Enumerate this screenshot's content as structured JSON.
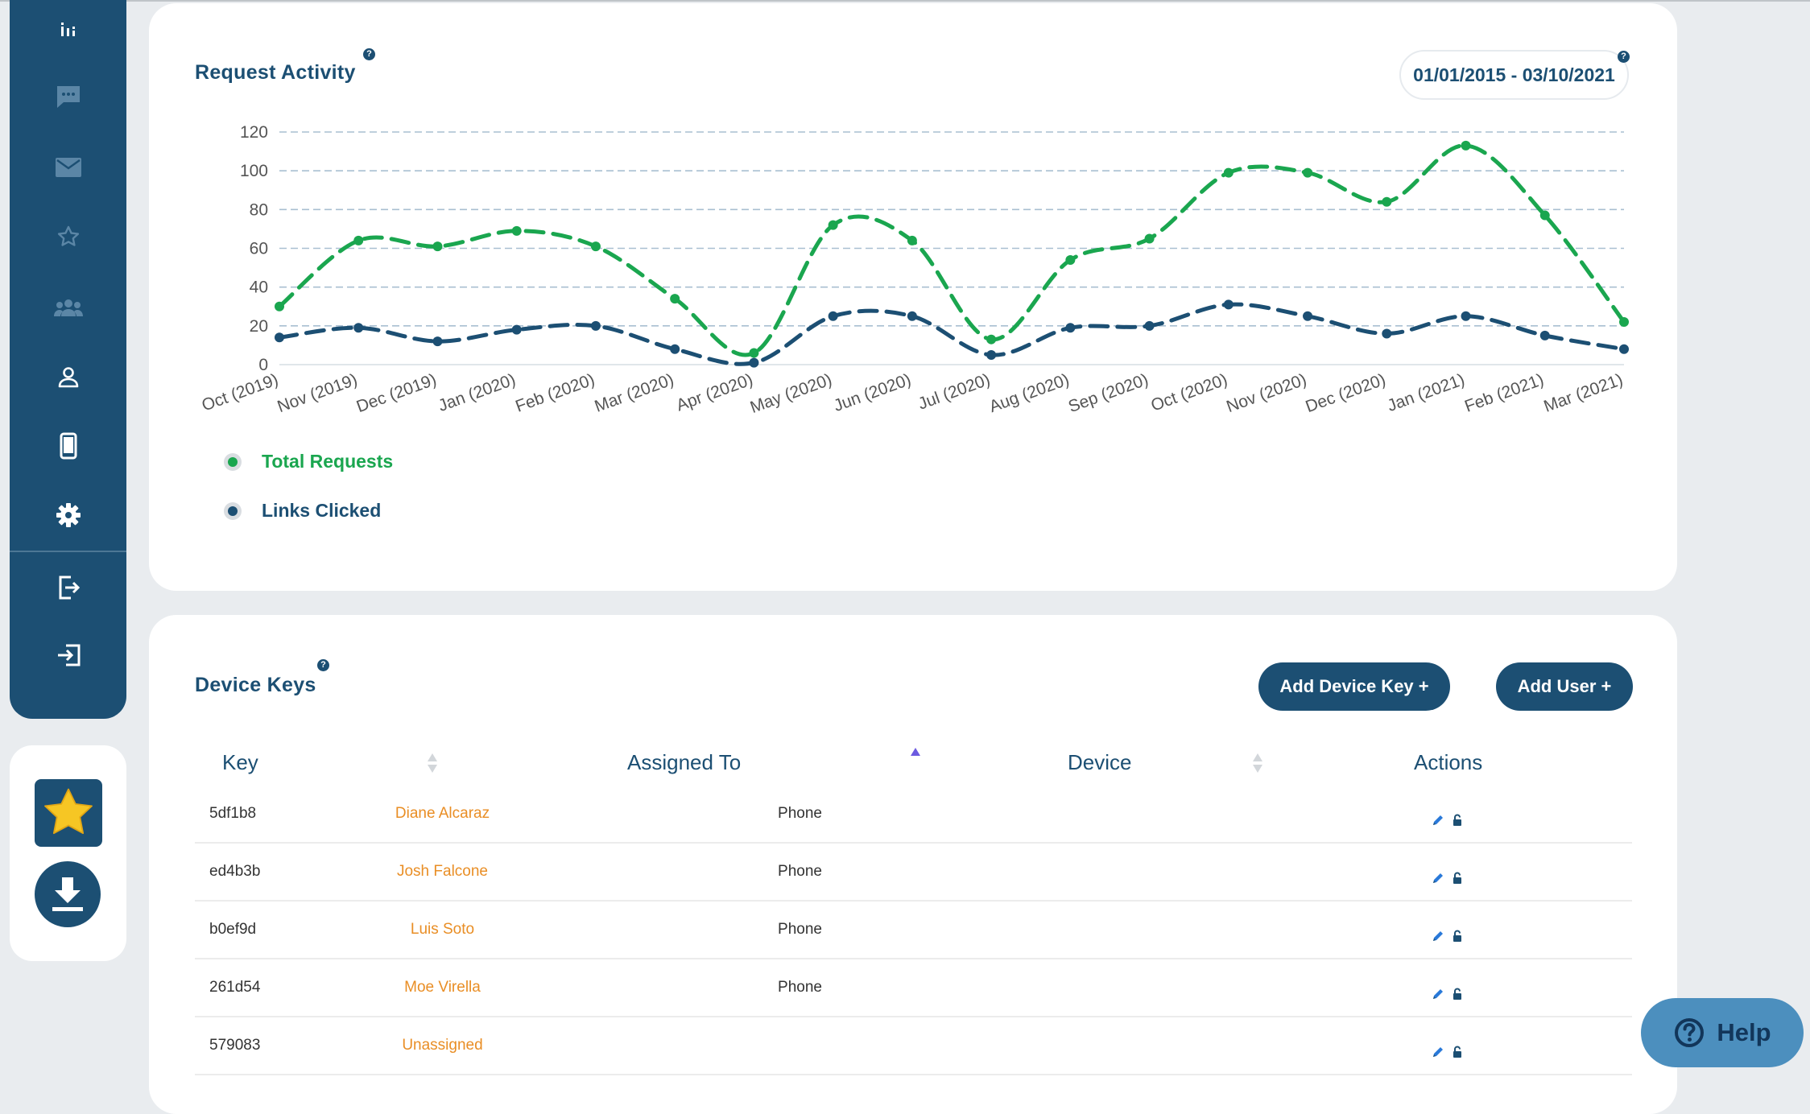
{
  "sidebar": {
    "nav": [
      {
        "icon": "bar-chart-icon"
      },
      {
        "icon": "chat-icon"
      },
      {
        "icon": "mail-icon"
      },
      {
        "icon": "star-icon"
      },
      {
        "icon": "group-icon"
      },
      {
        "icon": "user-icon"
      },
      {
        "icon": "phone-icon"
      },
      {
        "icon": "gear-icon"
      },
      {
        "icon": "export-icon"
      },
      {
        "icon": "logout-icon"
      }
    ],
    "favorites": [
      {
        "icon": "star-icon"
      },
      {
        "icon": "download-icon"
      }
    ]
  },
  "activity": {
    "title": "Request Activity",
    "help": "?",
    "date_range": "01/01/2015 - 03/10/2021",
    "date_range_help": "?"
  },
  "chart_data": {
    "type": "line",
    "title": "Request Activity",
    "categories": [
      "Oct (2019)",
      "Nov (2019)",
      "Dec (2019)",
      "Jan (2020)",
      "Feb (2020)",
      "Mar (2020)",
      "Apr (2020)",
      "May (2020)",
      "Jun (2020)",
      "Jul (2020)",
      "Aug (2020)",
      "Sep (2020)",
      "Oct (2020)",
      "Nov (2020)",
      "Dec (2020)",
      "Jan (2021)",
      "Feb (2021)",
      "Mar (2021)"
    ],
    "series": [
      {
        "name": "Total Requests",
        "color": "#1aa64f",
        "values": [
          30,
          64,
          61,
          69,
          61,
          34,
          6,
          72,
          64,
          13,
          54,
          65,
          99,
          99,
          84,
          113,
          77,
          22
        ]
      },
      {
        "name": "Links Clicked",
        "color": "#1c4f73",
        "values": [
          14,
          19,
          12,
          18,
          20,
          8,
          1,
          25,
          25,
          5,
          19,
          20,
          31,
          25,
          16,
          25,
          15,
          8
        ]
      }
    ],
    "yticks": [
      0,
      20,
      40,
      60,
      80,
      100,
      120
    ],
    "ylim": [
      0,
      120
    ],
    "grid": true,
    "line_style": "dashed",
    "legend_position": "bottom-left"
  },
  "keys": {
    "title": "Device Keys",
    "help": "?",
    "add_key_label": "Add Device Key +",
    "add_user_label": "Add User +",
    "columns": {
      "key": "Key",
      "assigned": "Assigned To",
      "device": "Device",
      "actions": "Actions"
    },
    "rows": [
      {
        "key": "5df1b8",
        "assigned": "Diane Alcaraz",
        "device": "Phone"
      },
      {
        "key": "ed4b3b",
        "assigned": "Josh Falcone",
        "device": "Phone"
      },
      {
        "key": "b0ef9d",
        "assigned": "Luis Soto",
        "device": "Phone"
      },
      {
        "key": "261d54",
        "assigned": "Moe Virella",
        "device": "Phone"
      },
      {
        "key": "579083",
        "assigned": "Unassigned",
        "device": ""
      }
    ]
  },
  "help_button": {
    "label": "Help",
    "icon": "question-circle-icon"
  }
}
